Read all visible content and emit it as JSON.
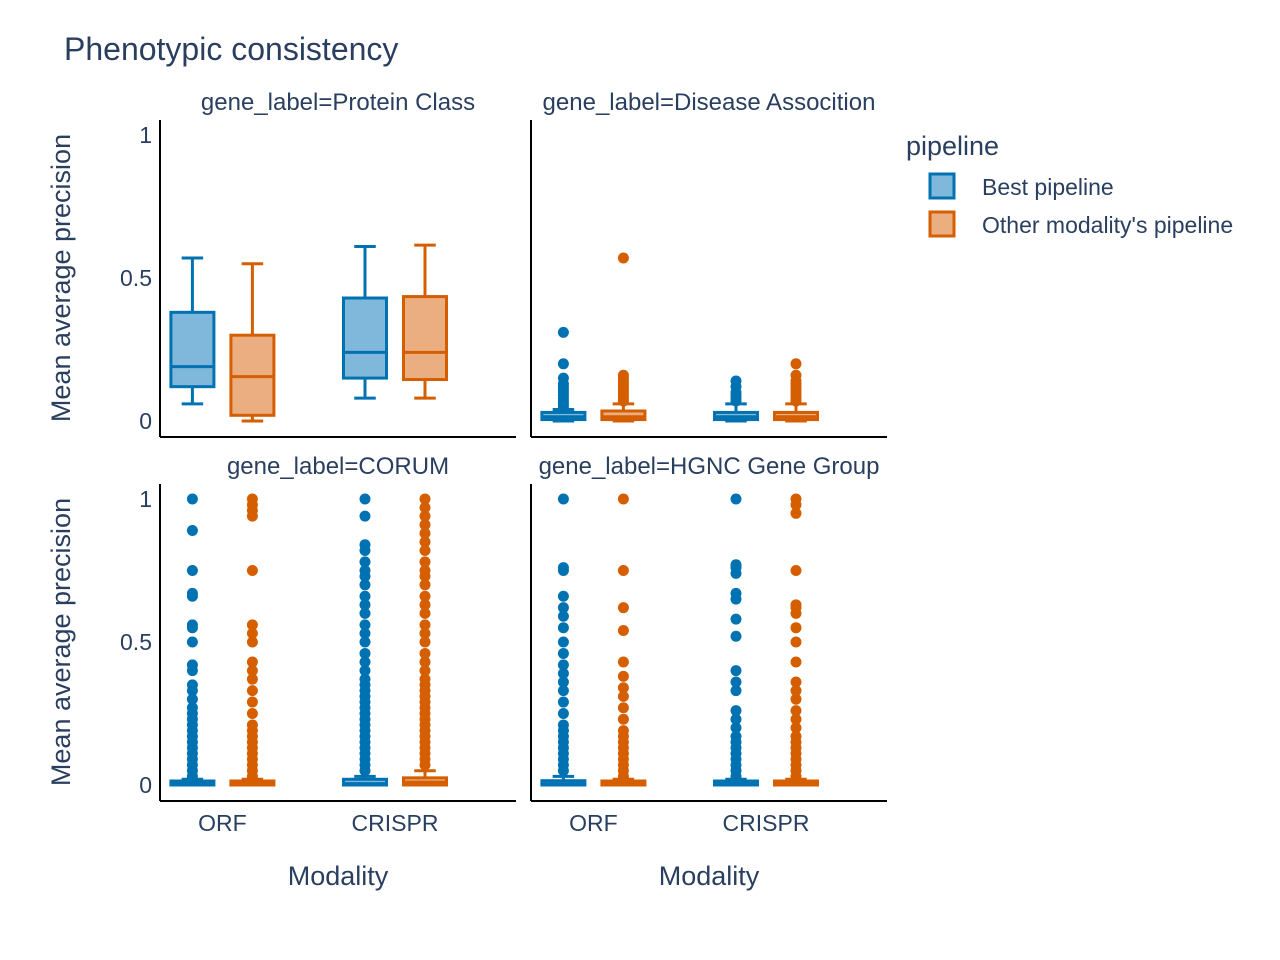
{
  "chart_data": {
    "type": "box",
    "title": "Phenotypic consistency",
    "xlabel": "Modality",
    "ylabel": "Mean average precision",
    "categories": [
      "ORF",
      "CRISPR"
    ],
    "ylim": [
      0,
      1
    ],
    "yticks": [
      "0",
      "0.5",
      "1"
    ],
    "grid": false,
    "legend": {
      "title": "pipeline",
      "position": "top-right",
      "entries": [
        "Best pipeline",
        "Other modality's pipeline"
      ]
    },
    "series_colors": {
      "Best pipeline": "#0072b2",
      "Other modality's pipeline": "#d55e00"
    },
    "facets": [
      {
        "label": "gene_label=Protein Class",
        "boxes": [
          {
            "category": "ORF",
            "series": "Best pipeline",
            "min": 0.06,
            "q1": 0.12,
            "median": 0.19,
            "q3": 0.38,
            "max": 0.57,
            "outliers": []
          },
          {
            "category": "ORF",
            "series": "Other modality's pipeline",
            "min": 0.0,
            "q1": 0.02,
            "median": 0.155,
            "q3": 0.3,
            "max": 0.55,
            "outliers": []
          },
          {
            "category": "CRISPR",
            "series": "Best pipeline",
            "min": 0.08,
            "q1": 0.15,
            "median": 0.24,
            "q3": 0.43,
            "max": 0.61,
            "outliers": []
          },
          {
            "category": "CRISPR",
            "series": "Other modality's pipeline",
            "min": 0.08,
            "q1": 0.145,
            "median": 0.24,
            "q3": 0.435,
            "max": 0.615,
            "outliers": []
          }
        ]
      },
      {
        "label": "gene_label=Disease Assocition",
        "boxes": [
          {
            "category": "ORF",
            "series": "Best pipeline",
            "min": 0.0,
            "q1": 0.005,
            "median": 0.015,
            "q3": 0.03,
            "max": 0.04,
            "outliers": [
              0.05,
              0.06,
              0.07,
              0.08,
              0.09,
              0.1,
              0.11,
              0.12,
              0.13,
              0.15,
              0.2,
              0.31
            ]
          },
          {
            "category": "ORF",
            "series": "Other modality's pipeline",
            "min": 0.0,
            "q1": 0.005,
            "median": 0.015,
            "q3": 0.035,
            "max": 0.06,
            "outliers": [
              0.07,
              0.08,
              0.09,
              0.1,
              0.11,
              0.12,
              0.13,
              0.14,
              0.15,
              0.16,
              0.57
            ]
          },
          {
            "category": "CRISPR",
            "series": "Best pipeline",
            "min": 0.0,
            "q1": 0.005,
            "median": 0.015,
            "q3": 0.03,
            "max": 0.06,
            "outliers": [
              0.07,
              0.08,
              0.09,
              0.1,
              0.12,
              0.14
            ]
          },
          {
            "category": "CRISPR",
            "series": "Other modality's pipeline",
            "min": 0.0,
            "q1": 0.005,
            "median": 0.015,
            "q3": 0.03,
            "max": 0.06,
            "outliers": [
              0.07,
              0.08,
              0.09,
              0.1,
              0.11,
              0.12,
              0.13,
              0.14,
              0.16,
              0.2
            ]
          }
        ]
      },
      {
        "label": "gene_label=CORUM",
        "boxes": [
          {
            "category": "ORF",
            "series": "Best pipeline",
            "min": 0.0,
            "q1": 0.0,
            "median": 0.005,
            "q3": 0.01,
            "max": 0.02,
            "outliers": [
              0.03,
              0.05,
              0.07,
              0.09,
              0.11,
              0.13,
              0.15,
              0.17,
              0.19,
              0.21,
              0.23,
              0.25,
              0.27,
              0.3,
              0.33,
              0.35,
              0.4,
              0.42,
              0.5,
              0.55,
              0.56,
              0.66,
              0.67,
              0.75,
              0.89,
              1.0
            ]
          },
          {
            "category": "ORF",
            "series": "Other modality's pipeline",
            "min": 0.0,
            "q1": 0.0,
            "median": 0.005,
            "q3": 0.01,
            "max": 0.02,
            "outliers": [
              0.03,
              0.05,
              0.07,
              0.09,
              0.11,
              0.13,
              0.15,
              0.17,
              0.19,
              0.21,
              0.25,
              0.29,
              0.33,
              0.37,
              0.4,
              0.43,
              0.5,
              0.53,
              0.56,
              0.75,
              0.94,
              0.96,
              0.98,
              1.0
            ]
          },
          {
            "category": "CRISPR",
            "series": "Best pipeline",
            "min": 0.0,
            "q1": 0.0,
            "median": 0.005,
            "q3": 0.02,
            "max": 0.03,
            "outliers": [
              0.05,
              0.07,
              0.09,
              0.11,
              0.13,
              0.15,
              0.17,
              0.19,
              0.21,
              0.23,
              0.25,
              0.27,
              0.29,
              0.31,
              0.33,
              0.35,
              0.37,
              0.4,
              0.43,
              0.46,
              0.5,
              0.53,
              0.56,
              0.6,
              0.63,
              0.66,
              0.7,
              0.73,
              0.75,
              0.78,
              0.82,
              0.84,
              0.94,
              1.0
            ]
          },
          {
            "category": "CRISPR",
            "series": "Other modality's pipeline",
            "min": 0.0,
            "q1": 0.0,
            "median": 0.01,
            "q3": 0.025,
            "max": 0.05,
            "outliers": [
              0.07,
              0.09,
              0.11,
              0.13,
              0.15,
              0.17,
              0.19,
              0.21,
              0.23,
              0.25,
              0.27,
              0.29,
              0.31,
              0.33,
              0.35,
              0.37,
              0.4,
              0.43,
              0.46,
              0.5,
              0.53,
              0.56,
              0.6,
              0.63,
              0.66,
              0.7,
              0.73,
              0.75,
              0.78,
              0.82,
              0.85,
              0.88,
              0.91,
              0.94,
              0.97,
              1.0
            ]
          }
        ]
      },
      {
        "label": "gene_label=HGNC Gene Group",
        "boxes": [
          {
            "category": "ORF",
            "series": "Best pipeline",
            "min": 0.0,
            "q1": 0.0,
            "median": 0.005,
            "q3": 0.015,
            "max": 0.03,
            "outliers": [
              0.05,
              0.07,
              0.09,
              0.11,
              0.13,
              0.15,
              0.17,
              0.19,
              0.21,
              0.25,
              0.29,
              0.33,
              0.36,
              0.39,
              0.42,
              0.46,
              0.5,
              0.55,
              0.59,
              0.62,
              0.66,
              0.75,
              0.76,
              1.0
            ]
          },
          {
            "category": "ORF",
            "series": "Other modality's pipeline",
            "min": 0.0,
            "q1": 0.0,
            "median": 0.005,
            "q3": 0.01,
            "max": 0.02,
            "outliers": [
              0.03,
              0.05,
              0.07,
              0.09,
              0.11,
              0.13,
              0.15,
              0.17,
              0.19,
              0.23,
              0.27,
              0.31,
              0.34,
              0.38,
              0.43,
              0.54,
              0.62,
              0.75,
              1.0
            ]
          },
          {
            "category": "CRISPR",
            "series": "Best pipeline",
            "min": 0.0,
            "q1": 0.0,
            "median": 0.005,
            "q3": 0.01,
            "max": 0.02,
            "outliers": [
              0.03,
              0.05,
              0.07,
              0.09,
              0.11,
              0.13,
              0.15,
              0.17,
              0.2,
              0.23,
              0.26,
              0.33,
              0.36,
              0.4,
              0.52,
              0.58,
              0.65,
              0.67,
              0.74,
              0.76,
              0.77,
              1.0
            ]
          },
          {
            "category": "CRISPR",
            "series": "Other modality's pipeline",
            "min": 0.0,
            "q1": 0.0,
            "median": 0.005,
            "q3": 0.01,
            "max": 0.02,
            "outliers": [
              0.03,
              0.05,
              0.07,
              0.09,
              0.11,
              0.13,
              0.15,
              0.17,
              0.2,
              0.23,
              0.26,
              0.3,
              0.33,
              0.36,
              0.43,
              0.5,
              0.55,
              0.6,
              0.62,
              0.63,
              0.75,
              0.95,
              0.98,
              1.0
            ]
          }
        ]
      }
    ]
  }
}
